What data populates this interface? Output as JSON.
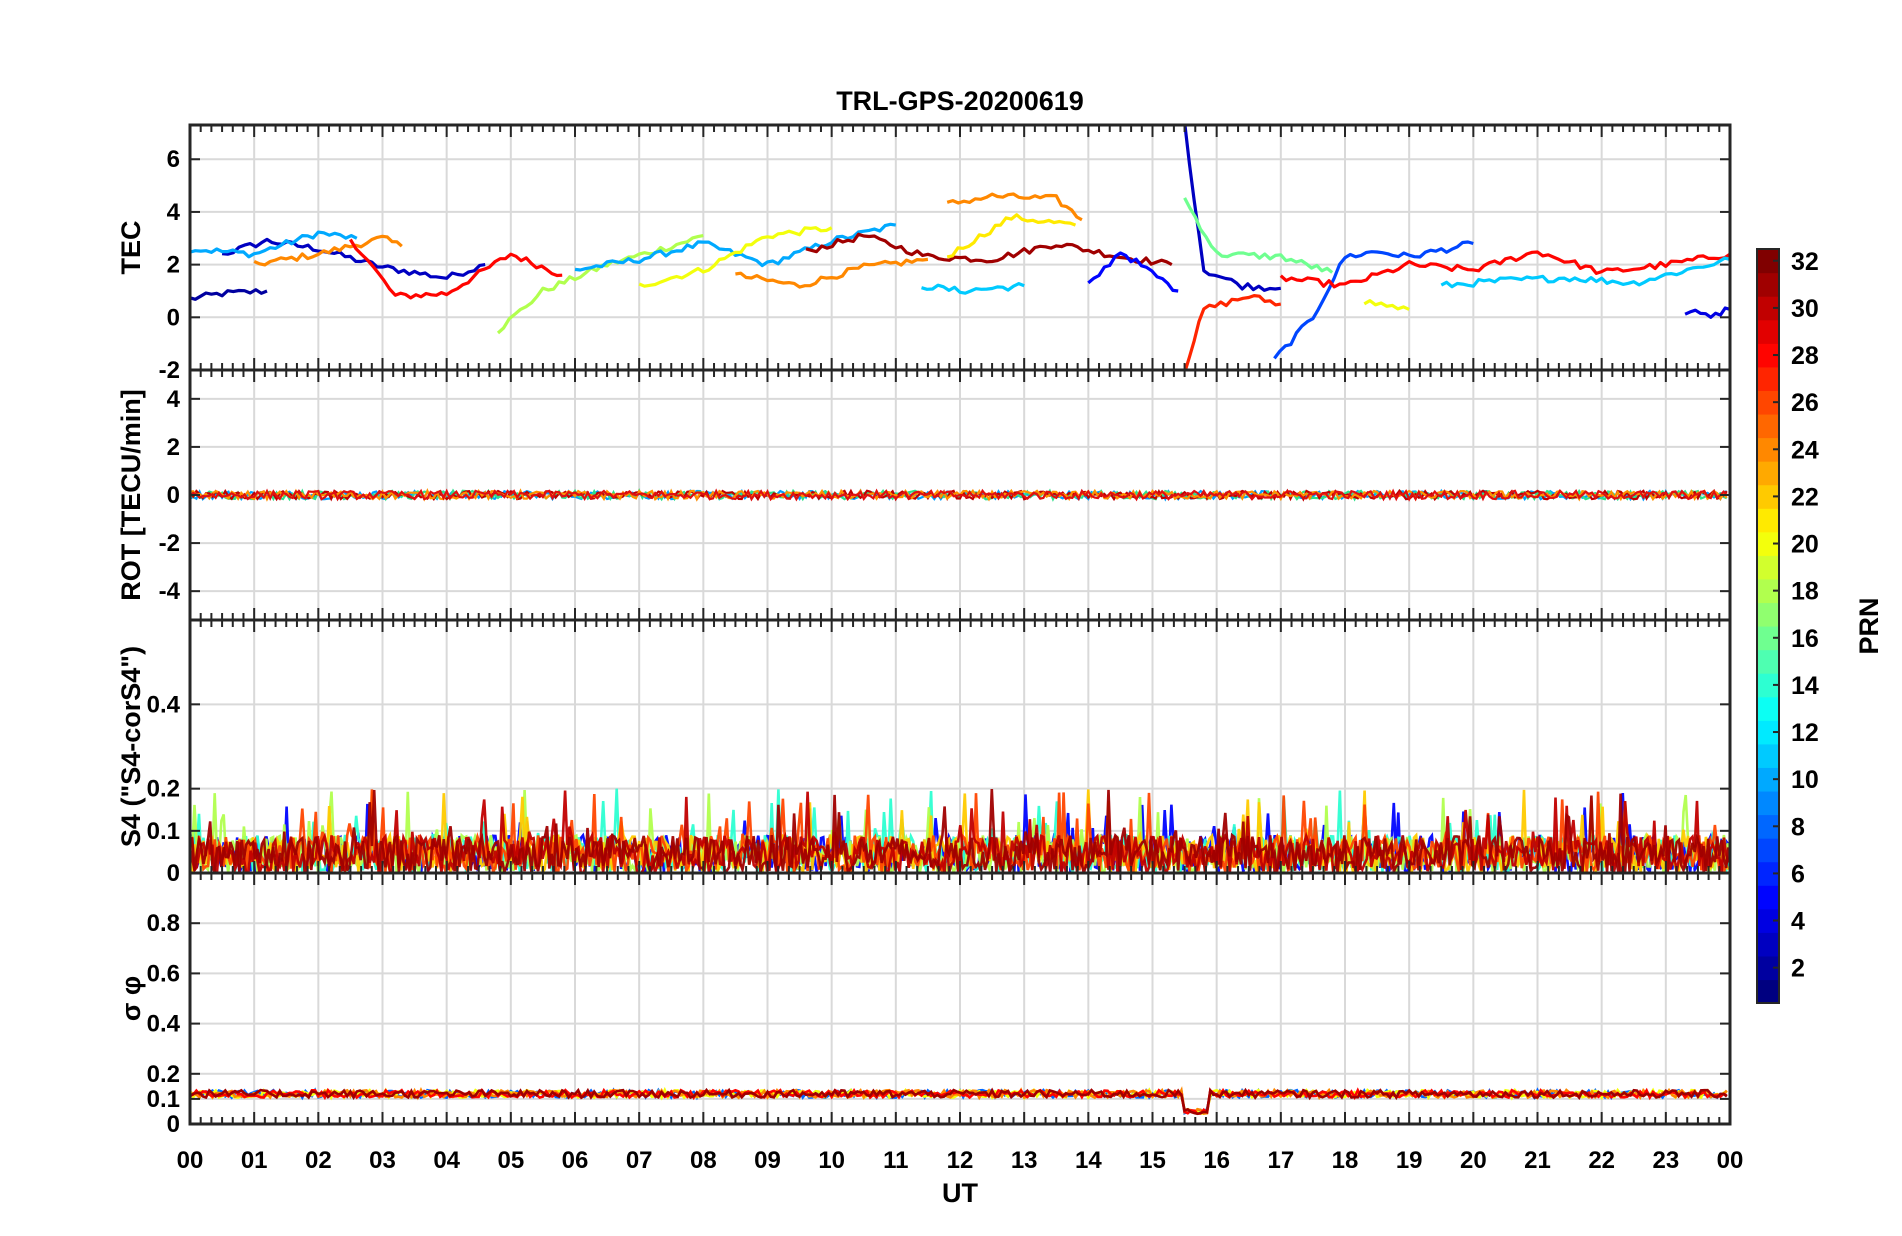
{
  "chart_data": {
    "type": "line",
    "title": "TRL-GPS-20200619",
    "xlabel": "UT",
    "x_tick_labels": [
      "00",
      "01",
      "02",
      "03",
      "04",
      "05",
      "06",
      "07",
      "08",
      "09",
      "10",
      "11",
      "12",
      "13",
      "14",
      "15",
      "16",
      "17",
      "18",
      "19",
      "20",
      "21",
      "22",
      "23",
      "00"
    ],
    "xlim": [
      0,
      24
    ],
    "panels": [
      {
        "name": "TEC",
        "ylabel": "TEC",
        "ylim": [
          -2,
          7.3
        ],
        "yticks": [
          -2,
          0,
          2,
          4,
          6
        ],
        "ytick_labels": [
          "-2",
          "0",
          "2",
          "4",
          "6"
        ],
        "series": [
          {
            "prn": 2,
            "x": [
              0.0,
              0.5,
              1.2
            ],
            "y": [
              0.7,
              0.9,
              1.0
            ]
          },
          {
            "prn": 3,
            "x": [
              0.5,
              1.2,
              2.0,
              3.0,
              4.0,
              4.6
            ],
            "y": [
              2.4,
              2.9,
              2.6,
              1.9,
              1.5,
              2.0
            ]
          },
          {
            "prn": 10,
            "x": [
              0.0,
              1.0,
              2.0,
              2.6
            ],
            "y": [
              2.6,
              2.4,
              3.2,
              3.0
            ]
          },
          {
            "prn": 24,
            "x": [
              1.0,
              2.0,
              3.0,
              3.3
            ],
            "y": [
              2.0,
              2.4,
              3.0,
              2.7
            ]
          },
          {
            "prn": 28,
            "x": [
              2.5,
              3.2,
              4.0,
              5.0,
              5.8
            ],
            "y": [
              3.0,
              0.8,
              0.9,
              2.4,
              1.6
            ]
          },
          {
            "prn": 18,
            "x": [
              4.8,
              5.5,
              6.5,
              7.5,
              8.0
            ],
            "y": [
              -0.5,
              1.0,
              2.0,
              2.7,
              3.1
            ]
          },
          {
            "prn": 10,
            "x": [
              6.0,
              7.0,
              8.0,
              9.0,
              10.0,
              11.0
            ],
            "y": [
              1.8,
              2.2,
              2.8,
              2.0,
              2.9,
              3.5
            ]
          },
          {
            "prn": 20,
            "x": [
              7.0,
              8.0,
              9.0,
              10.0
            ],
            "y": [
              1.2,
              1.8,
              3.1,
              3.4
            ]
          },
          {
            "prn": 24,
            "x": [
              8.5,
              9.5,
              10.5,
              11.5
            ],
            "y": [
              1.6,
              1.2,
              1.9,
              2.2
            ]
          },
          {
            "prn": 31,
            "x": [
              9.6,
              10.5,
              11.5,
              12.5,
              13.5,
              14.5,
              15.3
            ],
            "y": [
              2.5,
              3.1,
              2.3,
              2.2,
              2.8,
              2.3,
              2.0
            ]
          },
          {
            "prn": 11,
            "x": [
              11.4,
              12.0,
              13.0
            ],
            "y": [
              1.2,
              1.0,
              1.2
            ]
          },
          {
            "prn": 24,
            "x": [
              11.8,
              12.5,
              13.5,
              13.9
            ],
            "y": [
              4.3,
              4.6,
              4.5,
              3.7
            ]
          },
          {
            "prn": 21,
            "x": [
              11.8,
              12.8,
              13.8
            ],
            "y": [
              2.3,
              3.8,
              3.5
            ]
          },
          {
            "prn": 5,
            "x": [
              14.0,
              14.5,
              15.4
            ],
            "y": [
              1.2,
              2.5,
              1.0
            ]
          },
          {
            "prn": 3,
            "x": [
              15.5,
              15.8,
              16.4,
              17.0
            ],
            "y": [
              7.3,
              1.8,
              1.2,
              1.1
            ]
          },
          {
            "prn": 27,
            "x": [
              15.5,
              15.8,
              16.5,
              17.0
            ],
            "y": [
              -2.0,
              0.3,
              0.8,
              0.5
            ]
          },
          {
            "prn": 16,
            "x": [
              15.5,
              16.0,
              17.0,
              17.8
            ],
            "y": [
              4.5,
              2.4,
              2.3,
              1.7
            ]
          },
          {
            "prn": 7,
            "x": [
              16.9,
              17.5,
              18.0,
              18.5,
              19.0,
              20.0
            ],
            "y": [
              -1.6,
              0.0,
              2.3,
              2.5,
              2.3,
              2.8
            ]
          },
          {
            "prn": 28,
            "x": [
              17.0,
              18.0,
              19.0,
              20.0,
              21.0,
              22.0,
              23.0,
              24.0
            ],
            "y": [
              1.5,
              1.2,
              2.0,
              1.8,
              2.5,
              1.7,
              2.0,
              2.4
            ]
          },
          {
            "prn": 20,
            "x": [
              18.3,
              19.0
            ],
            "y": [
              0.6,
              0.3
            ]
          },
          {
            "prn": 11,
            "x": [
              19.5,
              20.5,
              21.5,
              22.5,
              23.5,
              24.0
            ],
            "y": [
              1.2,
              1.4,
              1.5,
              1.3,
              1.9,
              2.2
            ]
          },
          {
            "prn": 4,
            "x": [
              23.3,
              23.7,
              24.0
            ],
            "y": [
              0.2,
              0.1,
              0.3
            ]
          }
        ]
      },
      {
        "name": "ROT",
        "ylabel": "ROT [TECU/min]",
        "ylim": [
          -5.2,
          5.2
        ],
        "yticks": [
          -4,
          -2,
          0,
          2,
          4
        ],
        "ytick_labels": [
          "-4",
          "-2",
          "0",
          "2",
          "4"
        ],
        "baseline": 0,
        "band_colors": [
          "#00a0ff",
          "#2ee08a",
          "#c00000",
          "#ff9000",
          "#e01010"
        ]
      },
      {
        "name": "S4",
        "ylabel": "S4 (\"S4-corS4\")",
        "ylim": [
          0,
          0.6
        ],
        "yticks": [
          0,
          0.1,
          0.2,
          0.4
        ],
        "ytick_labels": [
          "0",
          "0.1",
          "0.2",
          "0.4"
        ],
        "typical_max": 0.2,
        "peak_value": 0.2
      },
      {
        "name": "sigma_phi",
        "ylabel": "σ φ",
        "ylim": [
          0,
          1.0
        ],
        "yticks": [
          0,
          0.1,
          0.2,
          0.4,
          0.6,
          0.8
        ],
        "ytick_labels": [
          "0",
          "0.1",
          "0.2",
          "0.4",
          "0.6",
          "0.8"
        ],
        "baseline": 0.12,
        "dip_value": 0.05,
        "dip_x": [
          15.5,
          15.9
        ]
      }
    ],
    "colorbar": {
      "label": "PRN",
      "range": [
        1,
        32
      ],
      "ticks": [
        2,
        4,
        6,
        8,
        10,
        12,
        14,
        16,
        18,
        20,
        22,
        24,
        26,
        28,
        30,
        32
      ],
      "tick_labels": [
        "2",
        "4",
        "6",
        "8",
        "10",
        "12",
        "14",
        "16",
        "18",
        "20",
        "22",
        "24",
        "26",
        "28",
        "30",
        "32"
      ],
      "colormap": "jet"
    }
  }
}
